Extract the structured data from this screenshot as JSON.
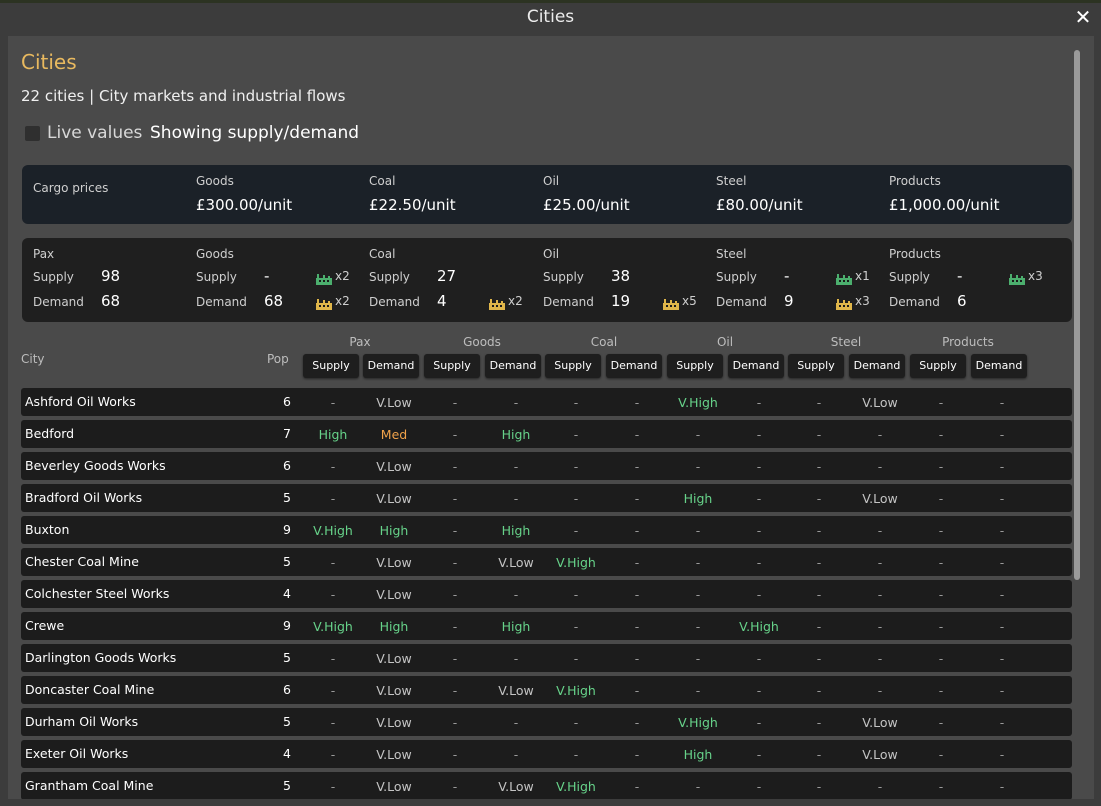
{
  "window": {
    "title": "Cities",
    "close_label": "✕"
  },
  "header": {
    "heading": "Cities",
    "subtitle": "22 cities | City markets and industrial flows",
    "live_values_label": "Live values",
    "showing_label": "Showing supply/demand",
    "live_values_checked": false
  },
  "prices": {
    "label": "Cargo prices",
    "items": [
      {
        "name": "Goods",
        "value": "£300.00/unit"
      },
      {
        "name": "Coal",
        "value": "£22.50/unit"
      },
      {
        "name": "Oil",
        "value": "£25.00/unit"
      },
      {
        "name": "Steel",
        "value": "£80.00/unit"
      },
      {
        "name": "Products",
        "value": "£1,000.00/unit"
      }
    ]
  },
  "supply_demand": {
    "supply_label": "Supply",
    "demand_label": "Demand",
    "groups": [
      {
        "name": "Pax",
        "supply": "98",
        "demand": "68",
        "supply_fac": "",
        "demand_fac": ""
      },
      {
        "name": "Goods",
        "supply": "-",
        "demand": "68",
        "supply_fac": "x2",
        "demand_fac": "x2"
      },
      {
        "name": "Coal",
        "supply": "27",
        "demand": "4",
        "supply_fac": "",
        "demand_fac": "x2"
      },
      {
        "name": "Oil",
        "supply": "38",
        "demand": "19",
        "supply_fac": "",
        "demand_fac": "x5"
      },
      {
        "name": "Steel",
        "supply": "-",
        "demand": "9",
        "supply_fac": "x1",
        "demand_fac": "x3"
      },
      {
        "name": "Products",
        "supply": "-",
        "demand": "6",
        "supply_fac": "x3",
        "demand_fac": ""
      }
    ]
  },
  "table": {
    "city_header": "City",
    "pop_header": "Pop",
    "groups": [
      "Pax",
      "Goods",
      "Coal",
      "Oil",
      "Steel",
      "Products"
    ],
    "buttons": [
      "Supply",
      "Demand",
      "Supply",
      "Demand",
      "Supply",
      "Demand",
      "Supply",
      "Demand",
      "Supply",
      "Demand",
      "Supply",
      "Demand"
    ],
    "rows": [
      {
        "name": "Ashford Oil Works",
        "pop": "6",
        "cells": [
          "-",
          "V.Low",
          "-",
          "-",
          "-",
          "-",
          "V.High",
          "-",
          "-",
          "V.Low",
          "-",
          "-"
        ]
      },
      {
        "name": "Bedford",
        "pop": "7",
        "cells": [
          "High",
          "Med",
          "-",
          "High",
          "-",
          "-",
          "-",
          "-",
          "-",
          "-",
          "-",
          "-"
        ]
      },
      {
        "name": "Beverley Goods Works",
        "pop": "6",
        "cells": [
          "-",
          "V.Low",
          "-",
          "-",
          "-",
          "-",
          "-",
          "-",
          "-",
          "-",
          "-",
          "-"
        ]
      },
      {
        "name": "Bradford Oil Works",
        "pop": "5",
        "cells": [
          "-",
          "V.Low",
          "-",
          "-",
          "-",
          "-",
          "High",
          "-",
          "-",
          "V.Low",
          "-",
          "-"
        ]
      },
      {
        "name": "Buxton",
        "pop": "9",
        "cells": [
          "V.High",
          "High",
          "-",
          "High",
          "-",
          "-",
          "-",
          "-",
          "-",
          "-",
          "-",
          "-"
        ]
      },
      {
        "name": "Chester Coal Mine",
        "pop": "5",
        "cells": [
          "-",
          "V.Low",
          "-",
          "V.Low",
          "V.High",
          "-",
          "-",
          "-",
          "-",
          "-",
          "-",
          "-"
        ]
      },
      {
        "name": "Colchester Steel Works",
        "pop": "4",
        "cells": [
          "-",
          "V.Low",
          "-",
          "-",
          "-",
          "-",
          "-",
          "-",
          "-",
          "-",
          "-",
          "-"
        ]
      },
      {
        "name": "Crewe",
        "pop": "9",
        "cells": [
          "V.High",
          "High",
          "-",
          "High",
          "-",
          "-",
          "-",
          "V.High",
          "-",
          "-",
          "-",
          "-"
        ]
      },
      {
        "name": "Darlington Goods Works",
        "pop": "5",
        "cells": [
          "-",
          "V.Low",
          "-",
          "-",
          "-",
          "-",
          "-",
          "-",
          "-",
          "-",
          "-",
          "-"
        ]
      },
      {
        "name": "Doncaster Coal Mine",
        "pop": "6",
        "cells": [
          "-",
          "V.Low",
          "-",
          "V.Low",
          "V.High",
          "-",
          "-",
          "-",
          "-",
          "-",
          "-",
          "-"
        ]
      },
      {
        "name": "Durham Oil Works",
        "pop": "5",
        "cells": [
          "-",
          "V.Low",
          "-",
          "-",
          "-",
          "-",
          "V.High",
          "-",
          "-",
          "V.Low",
          "-",
          "-"
        ]
      },
      {
        "name": "Exeter Oil Works",
        "pop": "4",
        "cells": [
          "-",
          "V.Low",
          "-",
          "-",
          "-",
          "-",
          "High",
          "-",
          "-",
          "V.Low",
          "-",
          "-"
        ]
      },
      {
        "name": "Grantham Coal Mine",
        "pop": "5",
        "cells": [
          "-",
          "V.Low",
          "-",
          "V.Low",
          "V.High",
          "-",
          "-",
          "-",
          "-",
          "-",
          "-",
          "-"
        ]
      }
    ]
  },
  "colors": {
    "heading": "#e8b95f",
    "high": "#67d38a",
    "med": "#f0a24a",
    "low": "#c4c4c4",
    "dash": "#9a9a9a",
    "factory_green": "#4caf6e",
    "factory_yellow": "#e0b64a"
  }
}
